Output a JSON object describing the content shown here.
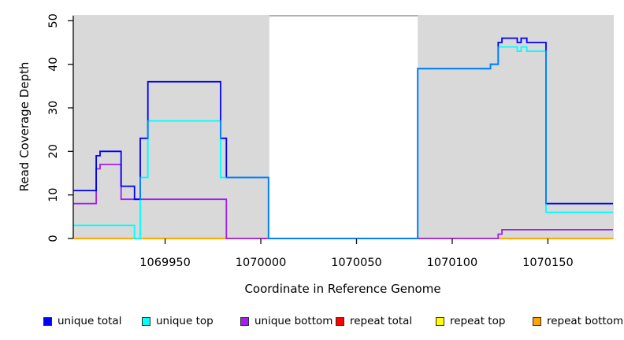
{
  "figure": {
    "y_axis_label": "Read Coverage Depth",
    "x_axis_label": "Coordinate in Reference Genome"
  },
  "chart_data": {
    "type": "line",
    "subtype": "step-coverage",
    "title": "",
    "xlabel": "Coordinate in Reference Genome",
    "ylabel": "Read Coverage Depth",
    "x_range": [
      1069902,
      1070184
    ],
    "y_range": [
      0,
      51
    ],
    "x_ticks": [
      1069950,
      1070000,
      1070050,
      1070100,
      1070150
    ],
    "y_ticks": [
      0,
      10,
      20,
      30,
      40,
      50
    ],
    "grid": false,
    "legend_position": "bottom",
    "background_shading": {
      "color": "#d9d9d9",
      "regions": [
        [
          1069902,
          1070004
        ],
        [
          1070082,
          1070184
        ]
      ],
      "uncovered_gap": [
        1070004,
        1070082
      ]
    },
    "series": [
      {
        "name": "unique total",
        "color": "#0000ff",
        "steps": [
          [
            1069902,
            11
          ],
          [
            1069914,
            19
          ],
          [
            1069916,
            20
          ],
          [
            1069927,
            12
          ],
          [
            1069934,
            9
          ],
          [
            1069937,
            23
          ],
          [
            1069941,
            36
          ],
          [
            1069979,
            23
          ],
          [
            1069982,
            14
          ],
          [
            1070004,
            0
          ],
          [
            1070082,
            39
          ],
          [
            1070120,
            40
          ],
          [
            1070124,
            45
          ],
          [
            1070126,
            46
          ],
          [
            1070134,
            45
          ],
          [
            1070136,
            46
          ],
          [
            1070139,
            45
          ],
          [
            1070149,
            8
          ]
        ]
      },
      {
        "name": "unique top",
        "color": "#00ffff",
        "steps": [
          [
            1069902,
            3
          ],
          [
            1069934,
            0
          ],
          [
            1069937,
            14
          ],
          [
            1069941,
            27
          ],
          [
            1069979,
            14
          ],
          [
            1070004,
            0
          ],
          [
            1070082,
            39
          ],
          [
            1070120,
            40
          ],
          [
            1070124,
            44
          ],
          [
            1070134,
            43
          ],
          [
            1070136,
            44
          ],
          [
            1070139,
            43
          ],
          [
            1070149,
            6
          ]
        ]
      },
      {
        "name": "unique bottom",
        "color": "#a020f0",
        "steps": [
          [
            1069902,
            8
          ],
          [
            1069914,
            16
          ],
          [
            1069916,
            17
          ],
          [
            1069927,
            9
          ],
          [
            1069982,
            0
          ],
          [
            1070124,
            1
          ],
          [
            1070126,
            2
          ]
        ]
      },
      {
        "name": "repeat total",
        "color": "#ff0000",
        "steps": [
          [
            1069902,
            0
          ]
        ]
      },
      {
        "name": "repeat top",
        "color": "#ffff00",
        "steps": [
          [
            1069902,
            0
          ]
        ]
      },
      {
        "name": "repeat bottom",
        "color": "#ffa500",
        "steps": [
          [
            1069902,
            0
          ]
        ]
      }
    ]
  }
}
